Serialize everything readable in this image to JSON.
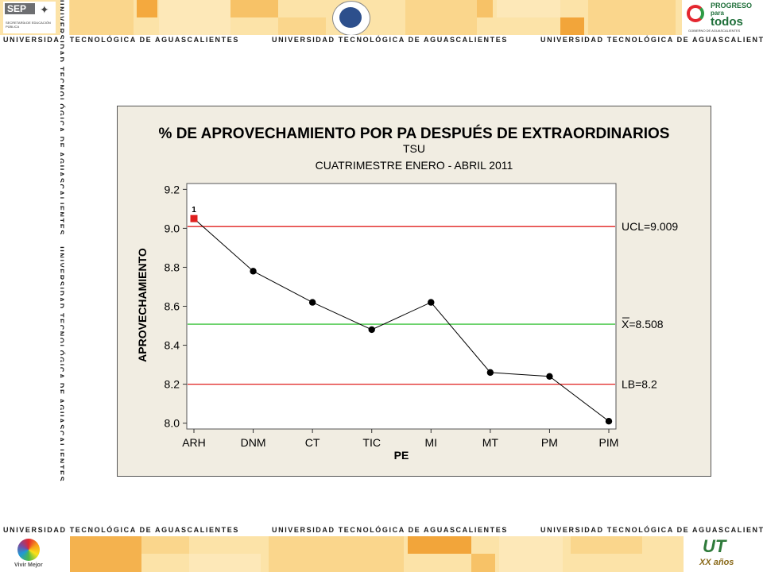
{
  "banner": {
    "strip_label": "UNIVERSIDAD TECNOLÓGICA DE AGUASCALIENTES",
    "sep_logo": "SEP",
    "sep_subtext": "SECRETARÍA DE EDUCACIÓN PÚBLICA",
    "progreso_line1": "PROGRESO",
    "progreso_line2": "para",
    "progreso_line3": "todos",
    "progreso_sub": "GOBIERNO DE AGUASCALIENTES",
    "vivir_mejor": "Vivir Mejor",
    "ut_logo": "UT",
    "xx_logo": "XX años"
  },
  "colors": {
    "band_light": "#fce3a8",
    "band_mid": "#f7c267",
    "band_dark": "#f2a53a",
    "chart_bg": "#f1ede2",
    "plot_bg": "#ffffff",
    "ucl_line": "#e0201f",
    "center_line": "#3cc43c",
    "data_line": "#000000",
    "out_of_control": "#e0201f"
  },
  "chart_data": {
    "type": "line",
    "title": "% DE APROVECHAMIENTO POR PA DESPUÉS DE EXTRAORDINARIOS",
    "subtitle1": "TSU",
    "subtitle2": "CUATRIMESTRE ENERO - ABRIL 2011",
    "xlabel": "PE",
    "ylabel": "APROVECHAMIENTO",
    "categories": [
      "ARH",
      "DNM",
      "CT",
      "TIC",
      "MI",
      "MT",
      "PM",
      "PIM"
    ],
    "values": [
      9.05,
      8.78,
      8.62,
      8.48,
      8.62,
      8.26,
      8.24,
      8.01
    ],
    "ylim": [
      7.97,
      9.23
    ],
    "yticks": [
      "8.0",
      "8.2",
      "8.4",
      "8.6",
      "8.8",
      "9.0",
      "9.2"
    ],
    "control_lines": [
      {
        "label": "UCL=9.009",
        "value": 9.009,
        "color": "#e0201f"
      },
      {
        "label": "X=8.508",
        "value": 8.508,
        "color": "#3cc43c",
        "overbar": true
      },
      {
        "label": "LB=8.2",
        "value": 8.2,
        "color": "#e0201f"
      }
    ],
    "out_of_control": [
      {
        "index": 0,
        "label": "1"
      }
    ],
    "grid": false,
    "legend": "none"
  }
}
